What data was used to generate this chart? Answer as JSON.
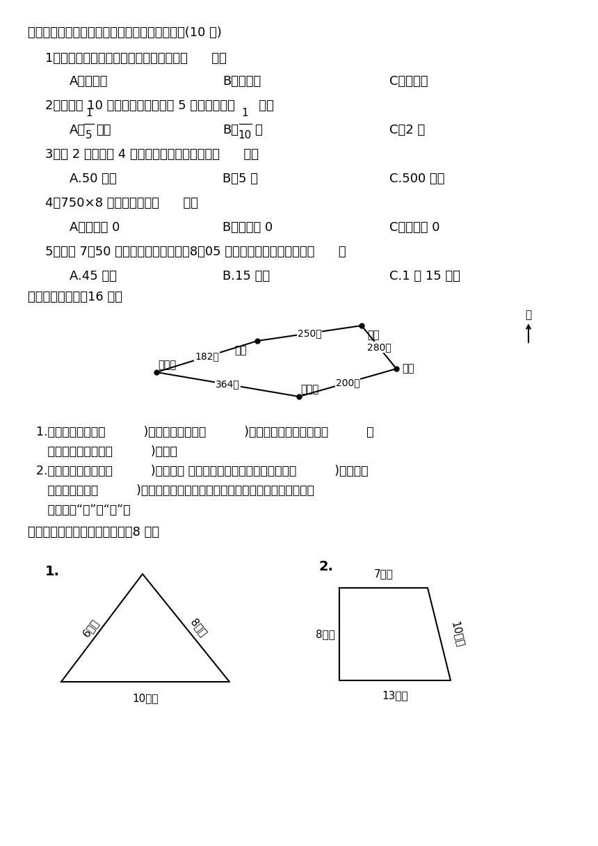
{
  "bg_color": "#ffffff",
  "text_color": "#000000",
  "title_section4": "四、选一选。（将正确答案的序号填在括号里）(10 分)",
  "q1": "1．最大的一位数除最大的三位数，商是（      ）。",
  "q1_A": "A．一位数",
  "q1_B": "B．两位数",
  "q1_C": "C．三位数",
  "q2": "2．把一根 10 米长的绳子平均剪成 5 段，每段长（      ）。",
  "q2_C": "C．2 米",
  "q3": "3．把 2 吟莉卜分 4 次运往北京，平均每次运（      ）。",
  "q3_A": "A.50 千克",
  "q3_B": "B．5 吟",
  "q3_C": "C.500 千克",
  "q4": "4．750×8 的乘积的末尾（      ）。",
  "q4_A": "A．有三个 0",
  "q4_B": "B．有两个 0",
  "q4_C": "C．有一个 0",
  "q5": "5．乐乐 7：50 从家里出发去看电影，8：05 到电影院，他在路上走了（      ）",
  "q5_A": "A.45 分钟",
  "q5_B": "B.15 分钟",
  "q5_C": "C.1 时 15 分钟",
  "title_section5": "五、看图填空。（16 分）",
  "s5q1": "1.学校在电影院的（          )方向，在书店的（          )方向；小明家在书店的（          ）",
  "s5q1b": "   方向，在电影院的（          )方向。",
  "s5q2": "2.从小明家去学校有（          )条路线。 其中一条是小明从家出发，先向（          )方向走到",
  "s5q2b": "   电影院，再向（          )方向走到学校。小明从家到学校，走这一条路线比较（",
  "s5q2c": "   ）。（填“远”或“近”）",
  "title_section6": "六、计算下列各图形的周长。（8 分）",
  "tri_label": "1.",
  "tri_left": "6厘米",
  "tri_right": "8厘米",
  "tri_bottom": "10厘米",
  "trap_label": "2.",
  "trap_top": "7分米",
  "trap_left": "8分米",
  "trap_right": "10分米",
  "trap_bottom": "13分米"
}
